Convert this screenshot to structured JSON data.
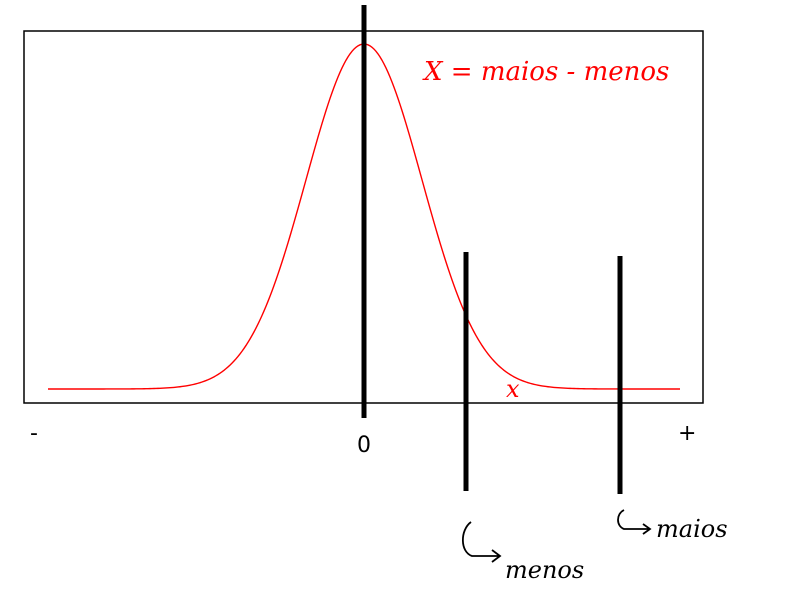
{
  "diagram": {
    "axis_labels": {
      "minus": "-",
      "zero": "0",
      "plus": "+"
    },
    "curve": {
      "type": "normal-distribution",
      "center": 0,
      "color": "#ff0000"
    },
    "annotations": {
      "formula": "X = maios - menos",
      "marker": "x",
      "menos": "menos",
      "maios": "maios"
    },
    "colors": {
      "curve": "#ff0000",
      "frame": "#000000",
      "lines": "#000000"
    }
  }
}
